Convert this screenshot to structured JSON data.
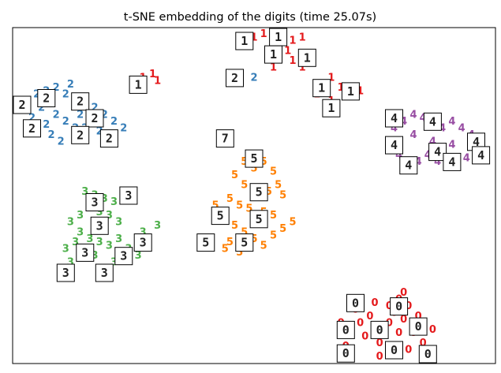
{
  "chart_data": {
    "type": "scatter",
    "title": "t-SNE embedding of the digits (time 25.07s)",
    "xlabel": "",
    "ylabel": "",
    "xlim": [
      0,
      1
    ],
    "ylim": [
      0,
      1
    ],
    "grid": false,
    "axis_ticks": "hidden",
    "legend": "none",
    "marker_style": "digit-label",
    "series": [
      {
        "label": "0",
        "color": "#e41a1c",
        "points": [
          [
            0.72,
            0.19
          ],
          [
            0.75,
            0.18
          ],
          [
            0.78,
            0.17
          ],
          [
            0.8,
            0.19
          ],
          [
            0.82,
            0.17
          ],
          [
            0.84,
            0.14
          ],
          [
            0.81,
            0.13
          ],
          [
            0.78,
            0.12
          ],
          [
            0.75,
            0.11
          ],
          [
            0.72,
            0.12
          ],
          [
            0.7,
            0.1
          ],
          [
            0.73,
            0.08
          ],
          [
            0.76,
            0.06
          ],
          [
            0.79,
            0.05
          ],
          [
            0.82,
            0.04
          ],
          [
            0.85,
            0.06
          ],
          [
            0.83,
            0.09
          ],
          [
            0.8,
            0.09
          ],
          [
            0.77,
            0.09
          ],
          [
            0.74,
            0.14
          ],
          [
            0.71,
            0.16
          ],
          [
            0.68,
            0.12
          ],
          [
            0.69,
            0.05
          ],
          [
            0.87,
            0.1
          ],
          [
            0.86,
            0.03
          ],
          [
            0.76,
            0.02
          ],
          [
            0.79,
            0.15
          ],
          [
            0.81,
            0.21
          ]
        ],
        "thumbs": [
          [
            0.71,
            0.18
          ],
          [
            0.8,
            0.17
          ],
          [
            0.69,
            0.1
          ],
          [
            0.76,
            0.1
          ],
          [
            0.84,
            0.11
          ],
          [
            0.69,
            0.03
          ],
          [
            0.79,
            0.04
          ],
          [
            0.86,
            0.02
          ]
        ]
      },
      {
        "label": "1",
        "color": "#e41a1c",
        "points": [
          [
            0.5,
            0.97
          ],
          [
            0.52,
            0.98
          ],
          [
            0.54,
            0.96
          ],
          [
            0.56,
            0.97
          ],
          [
            0.58,
            0.96
          ],
          [
            0.6,
            0.97
          ],
          [
            0.57,
            0.93
          ],
          [
            0.53,
            0.93
          ],
          [
            0.55,
            0.91
          ],
          [
            0.58,
            0.9
          ],
          [
            0.6,
            0.88
          ],
          [
            0.54,
            0.88
          ],
          [
            0.63,
            0.8
          ],
          [
            0.66,
            0.85
          ],
          [
            0.68,
            0.82
          ],
          [
            0.7,
            0.8
          ],
          [
            0.72,
            0.81
          ],
          [
            0.66,
            0.78
          ],
          [
            0.27,
            0.85
          ],
          [
            0.29,
            0.86
          ],
          [
            0.3,
            0.84
          ],
          [
            0.25,
            0.84
          ],
          [
            0.62,
            0.9
          ]
        ],
        "thumbs": [
          [
            0.48,
            0.96
          ],
          [
            0.55,
            0.98
          ],
          [
            0.54,
            0.92
          ],
          [
            0.61,
            0.91
          ],
          [
            0.64,
            0.82
          ],
          [
            0.7,
            0.81
          ],
          [
            0.66,
            0.76
          ],
          [
            0.26,
            0.83
          ]
        ]
      },
      {
        "label": "2",
        "color": "#377eb8",
        "points": [
          [
            0.05,
            0.8
          ],
          [
            0.07,
            0.81
          ],
          [
            0.09,
            0.82
          ],
          [
            0.11,
            0.8
          ],
          [
            0.13,
            0.79
          ],
          [
            0.15,
            0.78
          ],
          [
            0.17,
            0.76
          ],
          [
            0.19,
            0.74
          ],
          [
            0.21,
            0.72
          ],
          [
            0.23,
            0.7
          ],
          [
            0.09,
            0.74
          ],
          [
            0.11,
            0.72
          ],
          [
            0.13,
            0.7
          ],
          [
            0.08,
            0.68
          ],
          [
            0.06,
            0.76
          ],
          [
            0.04,
            0.73
          ],
          [
            0.15,
            0.7
          ],
          [
            0.18,
            0.69
          ],
          [
            0.2,
            0.68
          ],
          [
            0.1,
            0.66
          ],
          [
            0.07,
            0.71
          ],
          [
            0.14,
            0.74
          ],
          [
            0.5,
            0.85
          ],
          [
            0.12,
            0.83
          ]
        ],
        "thumbs": [
          [
            0.07,
            0.79
          ],
          [
            0.14,
            0.78
          ],
          [
            0.01,
            0.77
          ],
          [
            0.17,
            0.73
          ],
          [
            0.04,
            0.7
          ],
          [
            0.14,
            0.68
          ],
          [
            0.2,
            0.67
          ],
          [
            0.46,
            0.85
          ]
        ]
      },
      {
        "label": "3",
        "color": "#4daf4a",
        "points": [
          [
            0.15,
            0.51
          ],
          [
            0.17,
            0.5
          ],
          [
            0.19,
            0.49
          ],
          [
            0.21,
            0.48
          ],
          [
            0.16,
            0.47
          ],
          [
            0.18,
            0.45
          ],
          [
            0.2,
            0.44
          ],
          [
            0.14,
            0.44
          ],
          [
            0.12,
            0.42
          ],
          [
            0.14,
            0.39
          ],
          [
            0.16,
            0.37
          ],
          [
            0.18,
            0.36
          ],
          [
            0.2,
            0.35
          ],
          [
            0.22,
            0.37
          ],
          [
            0.24,
            0.34
          ],
          [
            0.26,
            0.32
          ],
          [
            0.13,
            0.36
          ],
          [
            0.11,
            0.34
          ],
          [
            0.17,
            0.32
          ],
          [
            0.21,
            0.3
          ],
          [
            0.3,
            0.41
          ],
          [
            0.27,
            0.39
          ],
          [
            0.22,
            0.42
          ],
          [
            0.12,
            0.3
          ],
          [
            0.2,
            0.28
          ]
        ],
        "thumbs": [
          [
            0.17,
            0.48
          ],
          [
            0.24,
            0.5
          ],
          [
            0.18,
            0.41
          ],
          [
            0.27,
            0.36
          ],
          [
            0.15,
            0.33
          ],
          [
            0.23,
            0.32
          ],
          [
            0.11,
            0.27
          ],
          [
            0.19,
            0.27
          ]
        ]
      },
      {
        "label": "4",
        "color": "#984ea3",
        "points": [
          [
            0.79,
            0.7
          ],
          [
            0.81,
            0.72
          ],
          [
            0.83,
            0.74
          ],
          [
            0.85,
            0.73
          ],
          [
            0.87,
            0.71
          ],
          [
            0.89,
            0.7
          ],
          [
            0.91,
            0.72
          ],
          [
            0.93,
            0.7
          ],
          [
            0.95,
            0.68
          ],
          [
            0.97,
            0.66
          ],
          [
            0.96,
            0.63
          ],
          [
            0.94,
            0.61
          ],
          [
            0.92,
            0.6
          ],
          [
            0.9,
            0.61
          ],
          [
            0.88,
            0.6
          ],
          [
            0.86,
            0.62
          ],
          [
            0.84,
            0.6
          ],
          [
            0.82,
            0.59
          ],
          [
            0.8,
            0.62
          ],
          [
            0.8,
            0.66
          ],
          [
            0.83,
            0.68
          ],
          [
            0.87,
            0.66
          ],
          [
            0.91,
            0.65
          ]
        ],
        "thumbs": [
          [
            0.79,
            0.73
          ],
          [
            0.87,
            0.72
          ],
          [
            0.79,
            0.65
          ],
          [
            0.88,
            0.63
          ],
          [
            0.96,
            0.66
          ],
          [
            0.82,
            0.59
          ],
          [
            0.91,
            0.6
          ],
          [
            0.97,
            0.62
          ]
        ]
      },
      {
        "label": "5",
        "color": "#ff7f00",
        "points": [
          [
            0.48,
            0.6
          ],
          [
            0.5,
            0.58
          ],
          [
            0.52,
            0.6
          ],
          [
            0.54,
            0.57
          ],
          [
            0.46,
            0.56
          ],
          [
            0.48,
            0.53
          ],
          [
            0.5,
            0.52
          ],
          [
            0.53,
            0.51
          ],
          [
            0.55,
            0.53
          ],
          [
            0.45,
            0.49
          ],
          [
            0.47,
            0.47
          ],
          [
            0.49,
            0.46
          ],
          [
            0.52,
            0.45
          ],
          [
            0.54,
            0.44
          ],
          [
            0.44,
            0.43
          ],
          [
            0.46,
            0.41
          ],
          [
            0.48,
            0.39
          ],
          [
            0.5,
            0.37
          ],
          [
            0.52,
            0.35
          ],
          [
            0.54,
            0.38
          ],
          [
            0.56,
            0.4
          ],
          [
            0.45,
            0.36
          ],
          [
            0.47,
            0.33
          ],
          [
            0.58,
            0.42
          ],
          [
            0.56,
            0.5
          ],
          [
            0.42,
            0.47
          ],
          [
            0.44,
            0.34
          ]
        ],
        "thumbs": [
          [
            0.5,
            0.61
          ],
          [
            0.51,
            0.51
          ],
          [
            0.43,
            0.44
          ],
          [
            0.51,
            0.43
          ],
          [
            0.4,
            0.36
          ],
          [
            0.48,
            0.36
          ]
        ]
      },
      {
        "label": "7",
        "color": "#a65628",
        "points": [],
        "thumbs": [
          [
            0.44,
            0.67
          ]
        ]
      }
    ]
  }
}
